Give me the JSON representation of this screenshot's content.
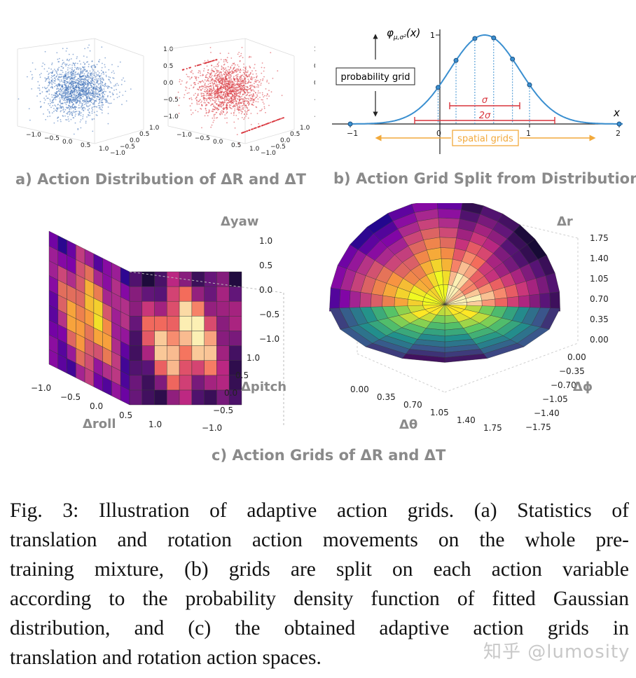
{
  "panel_a": {
    "caption": "a)  Action Distribution of ΔR and ΔT",
    "z_ticks": [
      "1.0",
      "0.5",
      "0.0",
      "−0.5",
      "−1.0"
    ],
    "x_ticks": [
      "−1.0",
      "−0.5",
      "0.0",
      "0.5",
      "1.0"
    ],
    "y_ticks": [
      "1.0",
      "0.5",
      "0.0",
      "−0.5",
      "−1.0"
    ],
    "left_color": "#3c6fb8",
    "right_color": "#d9363e"
  },
  "panel_b": {
    "caption": "b) Action Grid Split from Distribution",
    "func_label": "φ",
    "func_sub": "μ,σ²",
    "func_arg": "(x)",
    "y_tick": "1",
    "x_label": "x",
    "x_ticks": [
      "−1",
      "0",
      "1",
      "2"
    ],
    "probability_grid": "probability grid",
    "spatial_grids": "spatial grids",
    "sigma": "σ",
    "two_sigma": "2σ",
    "curve_color": "#3a8fd0",
    "accent_color": "#d8343c",
    "arrow_color": "#f2a93b"
  },
  "panel_c_left": {
    "z_label": "Δyaw",
    "z_ticks": [
      "1.0",
      "0.5",
      "0.0",
      "−0.5",
      "−1.0"
    ],
    "x_label": "Δroll",
    "x_ticks": [
      "−1.0",
      "−0.5",
      "0.0",
      "0.5",
      "1.0"
    ],
    "y_label": "Δpitch",
    "y_ticks": [
      "1.0",
      "0.5",
      "0.0",
      "−0.5",
      "−1.0"
    ]
  },
  "panel_c_right": {
    "z_label": "Δr",
    "z_ticks": [
      "1.75",
      "1.40",
      "1.05",
      "0.70",
      "0.35",
      "0.00"
    ],
    "x_label": "Δθ",
    "x_ticks": [
      "0.00",
      "0.35",
      "0.70",
      "1.05",
      "1.40",
      "1.75"
    ],
    "y_label": "Δϕ",
    "y_ticks": [
      "0.00",
      "−0.35",
      "−0.70",
      "−1.05",
      "−1.40",
      "−1.75"
    ]
  },
  "panel_c_caption": "c) Action Grids of ΔR and ΔT",
  "figure_caption": [
    "Fig. 3: Illustration of adaptive action grids. (a) Statistics of",
    "translation and rotation action movements on the whole pre-",
    "training mixture, (b) grids are split on each action variable",
    "according to the probability density function of fitted Gaussian",
    "distribution, and (c) the obtained adaptive action grids in",
    "translation and rotation action spaces."
  ],
  "watermark": "知乎 @lumosity"
}
